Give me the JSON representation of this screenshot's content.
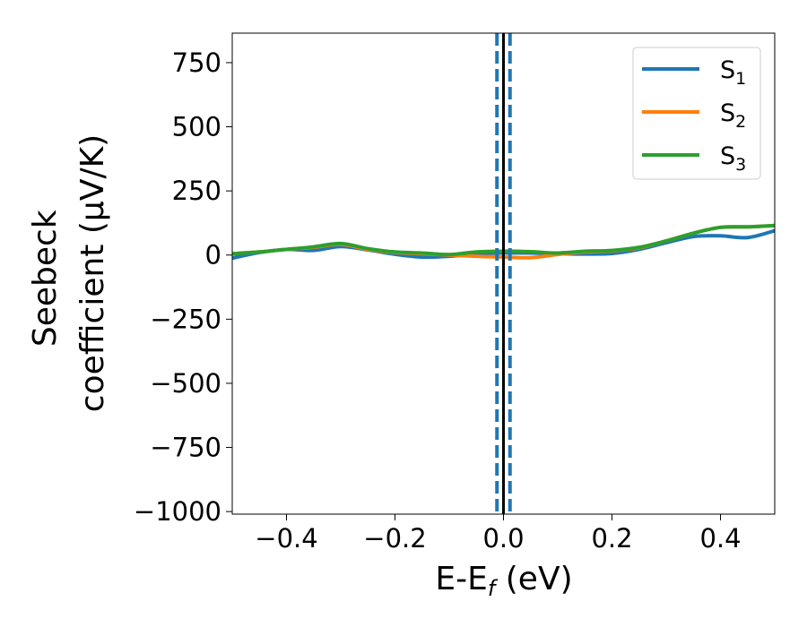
{
  "chart_data": {
    "type": "line",
    "title": "",
    "xlabel": "E-E",
    "xlabel_sub": "f",
    "xlabel_unit": " (eV)",
    "ylabel_line1": "Seebeck",
    "ylabel_line2": "coefficient  (μV/K)",
    "xlim": [
      -0.5,
      0.5
    ],
    "ylim": [
      -1010,
      865
    ],
    "xticks": [
      -0.4,
      -0.2,
      0.0,
      0.2,
      0.4
    ],
    "xtick_labels": [
      "−0.4",
      "−0.2",
      "0.0",
      "0.2",
      "0.4"
    ],
    "yticks": [
      750,
      500,
      250,
      0,
      -250,
      -500,
      -750,
      -1000
    ],
    "ytick_labels": [
      "750",
      "500",
      "250",
      "0",
      "−250",
      "−500",
      "−750",
      "−1000"
    ],
    "grid": false,
    "legend_position": "top-right",
    "series": [
      {
        "name": "S",
        "name_sub": "1",
        "color": "#1f77b4",
        "x": [
          -0.5,
          -0.45,
          -0.4,
          -0.35,
          -0.3,
          -0.25,
          -0.2,
          -0.15,
          -0.1,
          -0.05,
          0.0,
          0.05,
          0.1,
          0.15,
          0.2,
          0.25,
          0.3,
          0.35,
          0.4,
          0.45,
          0.5
        ],
        "y": [
          -12,
          10,
          22,
          18,
          33,
          20,
          3,
          -8,
          -5,
          5,
          8,
          8,
          5,
          4,
          6,
          22,
          48,
          72,
          75,
          68,
          95
        ]
      },
      {
        "name": "S",
        "name_sub": "2",
        "color": "#ff7f0e",
        "x": [
          -0.5,
          -0.45,
          -0.4,
          -0.35,
          -0.3,
          -0.25,
          -0.2,
          -0.15,
          -0.1,
          -0.05,
          0.0,
          0.05,
          0.1,
          0.15,
          0.2,
          0.25,
          0.3,
          0.35,
          0.4,
          0.45,
          0.5
        ],
        "y": [
          5,
          12,
          22,
          30,
          42,
          22,
          10,
          5,
          0,
          -5,
          -8,
          -10,
          2,
          12,
          16,
          28,
          55,
          85,
          108,
          110,
          115
        ]
      },
      {
        "name": "S",
        "name_sub": "3",
        "color": "#2ca02c",
        "x": [
          -0.5,
          -0.45,
          -0.4,
          -0.35,
          -0.3,
          -0.25,
          -0.2,
          -0.15,
          -0.1,
          -0.05,
          0.0,
          0.05,
          0.1,
          0.15,
          0.2,
          0.25,
          0.3,
          0.35,
          0.4,
          0.45,
          0.5
        ],
        "y": [
          5,
          12,
          22,
          32,
          45,
          25,
          12,
          8,
          2,
          12,
          15,
          13,
          8,
          15,
          18,
          30,
          55,
          85,
          108,
          110,
          115
        ]
      }
    ],
    "vlines": [
      {
        "x": 0.0,
        "color": "#000000",
        "style": "solid"
      },
      {
        "x": -0.012,
        "color": "#1f77b4",
        "style": "dashed"
      },
      {
        "x": 0.012,
        "color": "#1f77b4",
        "style": "dashed"
      }
    ]
  }
}
